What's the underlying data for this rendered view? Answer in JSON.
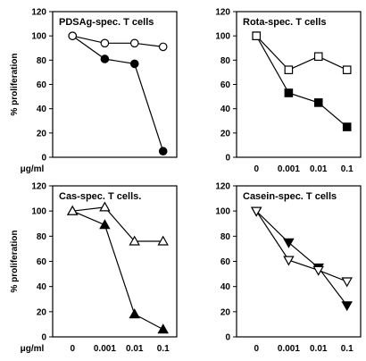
{
  "chart_data": [
    {
      "type": "line",
      "title": "PDSAg-spec. T cells",
      "ylabel": "% proliferation",
      "xlabel": "",
      "ylim": [
        0,
        120
      ],
      "yticks": [
        "0",
        "20",
        "40",
        "60",
        "80",
        "100",
        "120"
      ],
      "categories": [
        "0",
        "0.001",
        "0.01",
        "0.1"
      ],
      "show_x_tick_labels": false,
      "series": [
        {
          "marker": "circle",
          "filled": true,
          "values": [
            100,
            81,
            77,
            5
          ]
        },
        {
          "marker": "circle",
          "filled": false,
          "values": [
            100,
            94,
            94,
            91
          ]
        }
      ]
    },
    {
      "type": "line",
      "title": "Rota-spec. T cells",
      "ylabel": "",
      "xlabel": "",
      "ylim": [
        0,
        120
      ],
      "yticks": [
        "0",
        "20",
        "40",
        "60",
        "80",
        "100",
        "120"
      ],
      "categories": [
        "0",
        "0.001",
        "0.01",
        "0.1"
      ],
      "show_x_tick_labels": true,
      "series": [
        {
          "marker": "square",
          "filled": true,
          "values": [
            100,
            53,
            45,
            25
          ]
        },
        {
          "marker": "square",
          "filled": false,
          "values": [
            100,
            72,
            83,
            72
          ]
        }
      ]
    },
    {
      "type": "line",
      "title": "Cas-spec. T cells.",
      "ylabel": "% proliferation",
      "xlabel": "μg/ml",
      "ylim": [
        0,
        120
      ],
      "yticks": [
        "0",
        "20",
        "40",
        "60",
        "80",
        "100",
        "120"
      ],
      "categories": [
        "0",
        "0.001",
        "0.01",
        "0.1"
      ],
      "show_x_tick_labels": true,
      "series": [
        {
          "marker": "triangle-up",
          "filled": true,
          "values": [
            100,
            89,
            18,
            6
          ]
        },
        {
          "marker": "triangle-up",
          "filled": false,
          "values": [
            100,
            103,
            76,
            76
          ]
        }
      ]
    },
    {
      "type": "line",
      "title": "Casein-spec. T cells",
      "ylabel": "",
      "xlabel": "",
      "ylim": [
        0,
        120
      ],
      "yticks": [
        "0",
        "20",
        "40",
        "60",
        "80",
        "100",
        "120"
      ],
      "categories": [
        "0",
        "0.001",
        "0.01",
        "0.1"
      ],
      "show_x_tick_labels": true,
      "series": [
        {
          "marker": "triangle-down",
          "filled": true,
          "values": [
            100,
            75,
            55,
            25
          ]
        },
        {
          "marker": "triangle-down",
          "filled": false,
          "values": [
            100,
            61,
            53,
            44
          ]
        }
      ]
    }
  ],
  "between_row_label": "μg/ml"
}
